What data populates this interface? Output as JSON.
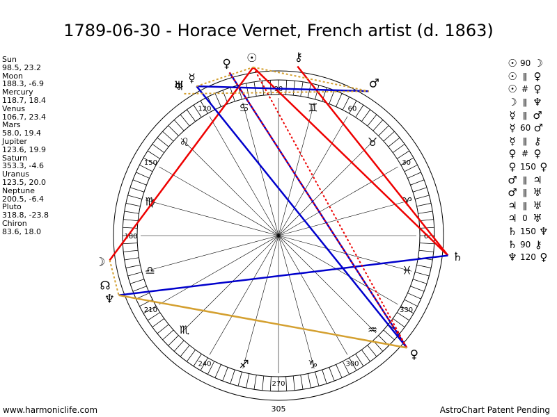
{
  "title": "1789-06-30 - Horace Vernet, French artist (d. 1863)",
  "planets": [
    {
      "name": "Sun",
      "pos": "98.5, 23.2",
      "lon": 98.5,
      "glyph": "☉"
    },
    {
      "name": "Moon",
      "pos": "188.3, -6.9",
      "lon": 188.3,
      "glyph": "☽"
    },
    {
      "name": "Mercury",
      "pos": "118.7, 18.4",
      "lon": 118.7,
      "glyph": "☿"
    },
    {
      "name": "Venus",
      "pos": "106.7, 23.4",
      "lon": 106.7,
      "glyph": "♀"
    },
    {
      "name": "Mars",
      "pos": "58.0, 19.4",
      "lon": 58.0,
      "glyph": "♂"
    },
    {
      "name": "Jupiter",
      "pos": "123.6, 19.9",
      "lon": 123.6,
      "glyph": "♃"
    },
    {
      "name": "Saturn",
      "pos": "353.3, -4.6",
      "lon": 353.3,
      "glyph": "♄"
    },
    {
      "name": "Uranus",
      "pos": "123.5, 20.0",
      "lon": 123.5,
      "glyph": "♅"
    },
    {
      "name": "Neptune",
      "pos": "200.5, -6.4",
      "lon": 200.5,
      "glyph": "♆"
    },
    {
      "name": "Pluto",
      "pos": "318.8, -23.8",
      "lon": 318.8,
      "glyph": "♀"
    },
    {
      "name": "Chiron",
      "pos": "83.6, 18.0",
      "lon": 83.6,
      "glyph": "⚷"
    }
  ],
  "aspects": [
    {
      "p1": "☉",
      "type": "90",
      "p2": "☽"
    },
    {
      "p1": "☉",
      "type": "ǁ",
      "p2": "♀"
    },
    {
      "p1": "☉",
      "type": "#",
      "p2": "♀"
    },
    {
      "p1": "☽",
      "type": "ǁ",
      "p2": "♆"
    },
    {
      "p1": "☿",
      "type": "ǁ",
      "p2": "♂"
    },
    {
      "p1": "☿",
      "type": "60",
      "p2": "♂"
    },
    {
      "p1": "☿",
      "type": "ǁ",
      "p2": "⚷"
    },
    {
      "p1": "♀",
      "type": "#",
      "p2": "♀"
    },
    {
      "p1": "♀",
      "type": "150",
      "p2": "♀"
    },
    {
      "p1": "♂",
      "type": "ǁ",
      "p2": "♃"
    },
    {
      "p1": "♂",
      "type": "ǁ",
      "p2": "♅"
    },
    {
      "p1": "♃",
      "type": "ǁ",
      "p2": "♅"
    },
    {
      "p1": "♃",
      "type": "0",
      "p2": "♅"
    },
    {
      "p1": "♄",
      "type": "150",
      "p2": "♆"
    },
    {
      "p1": "♄",
      "type": "90",
      "p2": "⚷"
    },
    {
      "p1": "♆",
      "type": "120",
      "p2": "♀"
    }
  ],
  "node_lon": 196.0,
  "wheel_labels": [
    {
      "deg": 0,
      "text": "0"
    },
    {
      "deg": 30,
      "text": "30"
    },
    {
      "deg": 60,
      "text": "60"
    },
    {
      "deg": 90,
      "text": "90"
    },
    {
      "deg": 120,
      "text": "120"
    },
    {
      "deg": 150,
      "text": "150"
    },
    {
      "deg": 180,
      "text": "180"
    },
    {
      "deg": 210,
      "text": "210"
    },
    {
      "deg": 240,
      "text": "240"
    },
    {
      "deg": 270,
      "text": "270"
    },
    {
      "deg": 300,
      "text": "300"
    },
    {
      "deg": 330,
      "text": "330"
    }
  ],
  "extra_label": "305",
  "signs": [
    {
      "glyph": "♈",
      "deg": 15
    },
    {
      "glyph": "♉",
      "deg": 45
    },
    {
      "glyph": "♊",
      "deg": 75
    },
    {
      "glyph": "♋",
      "deg": 105
    },
    {
      "glyph": "♌",
      "deg": 135
    },
    {
      "glyph": "♍",
      "deg": 165
    },
    {
      "glyph": "♎",
      "deg": 195
    },
    {
      "glyph": "♏",
      "deg": 225
    },
    {
      "glyph": "♐",
      "deg": 255
    },
    {
      "glyph": "♑",
      "deg": 285
    },
    {
      "glyph": "♒",
      "deg": 315
    },
    {
      "glyph": "♓",
      "deg": 345
    }
  ],
  "aspect_lines": [
    {
      "a": 188.3,
      "b": 98.5,
      "color": "#ee0000",
      "dash": false
    },
    {
      "a": 98.5,
      "b": 353.3,
      "color": "#ee0000",
      "dash": false
    },
    {
      "a": 353.3,
      "b": 83.6,
      "color": "#ee0000",
      "dash": false
    },
    {
      "a": 106.7,
      "b": 318.8,
      "color": "#0000cc",
      "dash": false
    },
    {
      "a": 118.7,
      "b": 58.0,
      "color": "#0000cc",
      "dash": false
    },
    {
      "a": 353.3,
      "b": 200.5,
      "color": "#0000cc",
      "dash": false
    },
    {
      "a": 118.7,
      "b": 318.8,
      "color": "#0000cc",
      "dash": false
    },
    {
      "a": 98.5,
      "b": 318.8,
      "color": "#ee0000",
      "dash": true
    },
    {
      "a": 106.7,
      "b": 318.8,
      "color": "#ee0000",
      "dash": true
    },
    {
      "a": 200.5,
      "b": 318.8,
      "color": "#d4a030",
      "dash": false
    },
    {
      "a": 188.3,
      "b": 200.5,
      "color": "#d4a030",
      "dash": true
    },
    {
      "a": 118.7,
      "b": 98.5,
      "color": "#d4a030",
      "dash": true
    },
    {
      "a": 98.5,
      "b": 58.0,
      "color": "#d4a030",
      "dash": true
    },
    {
      "a": 123.6,
      "b": 58.0,
      "color": "#d4a030",
      "dash": true
    }
  ],
  "footer": {
    "left": "www.harmoniclife.com",
    "right": "AstroChart Patent Pending"
  }
}
